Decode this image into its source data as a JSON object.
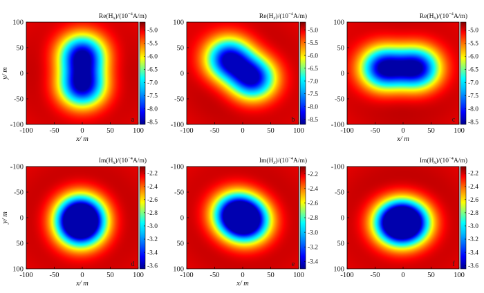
{
  "colors": {
    "colormap": [
      "#00008f",
      "#0000ff",
      "#0080ff",
      "#00ffff",
      "#80ff80",
      "#ffff00",
      "#ff8000",
      "#ff0000",
      "#800000"
    ]
  },
  "chart_data": [
    {
      "type": "heatmap",
      "panel": "a",
      "title_text": "Re(H",
      "title_sub": "x",
      "title_rest": ")/(10",
      "title_sup": "−4",
      "title_end": "A/m)",
      "xlabel": "x/ m",
      "ylabel": "y/ m",
      "xlim": [
        -100,
        100
      ],
      "ylim": [
        -100,
        100
      ],
      "xticks": [
        "-100",
        "-50",
        "0",
        "50",
        "100"
      ],
      "yticks": [
        "100",
        "50",
        "0",
        "-50",
        "-100"
      ],
      "y_inverted": false,
      "sources": [
        [
          0,
          35
        ],
        [
          0,
          -25
        ]
      ],
      "field_min": -8.5,
      "field_max": -4.7,
      "colorbar_ticks": [
        "-5.0",
        "-5.5",
        "-6.0",
        "-6.5",
        "-7.0",
        "-7.5",
        "-8.0",
        "-8.5"
      ],
      "colorbar_values": [
        -5.0,
        -5.5,
        -6.0,
        -6.5,
        -7.0,
        -7.5,
        -8.0,
        -8.5
      ],
      "colorbar_range": [
        -8.6,
        -4.7
      ]
    },
    {
      "type": "heatmap",
      "panel": "b",
      "title_text": "Re(H",
      "title_sub": "x",
      "title_rest": ")/(10",
      "title_sup": "−4",
      "title_end": "A/m)",
      "xlabel": "",
      "ylabel": "",
      "xlim": [
        -100,
        100
      ],
      "ylim": [
        -100,
        100
      ],
      "xticks": [
        "-100",
        "-50",
        "0",
        "50",
        "100"
      ],
      "yticks": [
        "100",
        "50",
        "0",
        "-50",
        "-100"
      ],
      "y_inverted": false,
      "sources": [
        [
          -25,
          28
        ],
        [
          18,
          -10
        ]
      ],
      "field_min": -8.5,
      "field_max": -4.7,
      "colorbar_ticks": [
        "-5.0",
        "-5.5",
        "-6.0",
        "-6.5",
        "-7.0",
        "-7.5",
        "-8.0",
        "-8.5"
      ],
      "colorbar_values": [
        -5.0,
        -5.5,
        -6.0,
        -6.5,
        -7.0,
        -7.5,
        -8.0,
        -8.5
      ],
      "colorbar_range": [
        -8.7,
        -4.7
      ]
    },
    {
      "type": "heatmap",
      "panel": "c",
      "title_text": "Re(H",
      "title_sub": "x",
      "title_rest": ")/(10",
      "title_sup": "−4",
      "title_end": "A/m)",
      "xlabel": "x/ m",
      "ylabel": "",
      "xlim": [
        -100,
        100
      ],
      "ylim": [
        -100,
        100
      ],
      "xticks": [
        "-100",
        "-50",
        "0",
        "50",
        "100"
      ],
      "yticks": [
        "100",
        "50",
        "0",
        "-50",
        "-100"
      ],
      "y_inverted": false,
      "sources": [
        [
          -35,
          10
        ],
        [
          25,
          10
        ]
      ],
      "field_min": -8.5,
      "field_max": -4.7,
      "colorbar_ticks": [
        "-5.0",
        "-5.5",
        "-6.0",
        "-6.5",
        "-7.0",
        "-7.5",
        "-8.0",
        "-8.5"
      ],
      "colorbar_values": [
        -5.0,
        -5.5,
        -6.0,
        -6.5,
        -7.0,
        -7.5,
        -8.0,
        -8.5
      ],
      "colorbar_range": [
        -8.6,
        -4.7
      ]
    },
    {
      "type": "heatmap",
      "panel": "d",
      "title_text": "Im(H",
      "title_sub": "x",
      "title_rest": ")/(10",
      "title_sup": "−4",
      "title_end": "A/m)",
      "xlabel": "x/ m",
      "ylabel": "y/ m",
      "xlim": [
        -100,
        100
      ],
      "ylim": [
        -100,
        100
      ],
      "xticks": [
        "-100",
        "-50",
        "0",
        "50",
        "100"
      ],
      "yticks": [
        "-100",
        "-50",
        "0",
        "50",
        "100"
      ],
      "y_inverted": true,
      "sources": [
        [
          -3,
          18
        ],
        [
          -3,
          -5
        ]
      ],
      "field_min": -3.6,
      "field_max": -2.1,
      "colorbar_ticks": [
        "-2.2",
        "-2.4",
        "-2.6",
        "-2.8",
        "-3.0",
        "-3.2",
        "-3.4",
        "-3.6"
      ],
      "colorbar_values": [
        -2.2,
        -2.4,
        -2.6,
        -2.8,
        -3.0,
        -3.2,
        -3.4,
        -3.6
      ],
      "colorbar_range": [
        -3.65,
        -2.1
      ]
    },
    {
      "type": "heatmap",
      "panel": "e",
      "title_text": "Im(H",
      "title_sub": "x",
      "title_rest": ")/(10",
      "title_sup": "−4",
      "title_end": "A/m)",
      "xlabel": "x/ m",
      "ylabel": "",
      "xlim": [
        -100,
        100
      ],
      "ylim": [
        -100,
        100
      ],
      "xticks": [
        "-100",
        "-50",
        "0",
        "50",
        "100"
      ],
      "yticks": [
        "-100",
        "-50",
        "0",
        "50",
        "100"
      ],
      "y_inverted": true,
      "sources": [
        [
          -12,
          -8
        ],
        [
          8,
          8
        ]
      ],
      "field_min": -3.45,
      "field_max": -2.1,
      "colorbar_ticks": [
        "-2.2",
        "-2.4",
        "-2.6",
        "-2.8",
        "-3.0",
        "-3.2",
        "-3.4"
      ],
      "colorbar_values": [
        -2.2,
        -2.4,
        -2.6,
        -2.8,
        -3.0,
        -3.2,
        -3.4
      ],
      "colorbar_range": [
        -3.5,
        -2.1
      ]
    },
    {
      "type": "heatmap",
      "panel": "f",
      "title_text": "Im(H",
      "title_sub": "x",
      "title_rest": ")/(10",
      "title_sup": "−4",
      "title_end": "A/m)",
      "xlabel": "",
      "ylabel": "",
      "xlim": [
        -100,
        100
      ],
      "ylim": [
        -100,
        100
      ],
      "xticks": [
        "-100",
        "-50",
        "0",
        "50",
        "100"
      ],
      "yticks": [
        "-100",
        "-50",
        "0",
        "50",
        "100"
      ],
      "y_inverted": true,
      "sources": [
        [
          -12,
          10
        ],
        [
          8,
          10
        ]
      ],
      "field_min": -3.6,
      "field_max": -2.1,
      "colorbar_ticks": [
        "-2.2",
        "-2.4",
        "-2.6",
        "-2.8",
        "-3.0",
        "-3.2",
        "-3.4",
        "-3.6"
      ],
      "colorbar_values": [
        -2.2,
        -2.4,
        -2.6,
        -2.8,
        -3.0,
        -3.2,
        -3.4,
        -3.6
      ],
      "colorbar_range": [
        -3.65,
        -2.1
      ]
    }
  ]
}
